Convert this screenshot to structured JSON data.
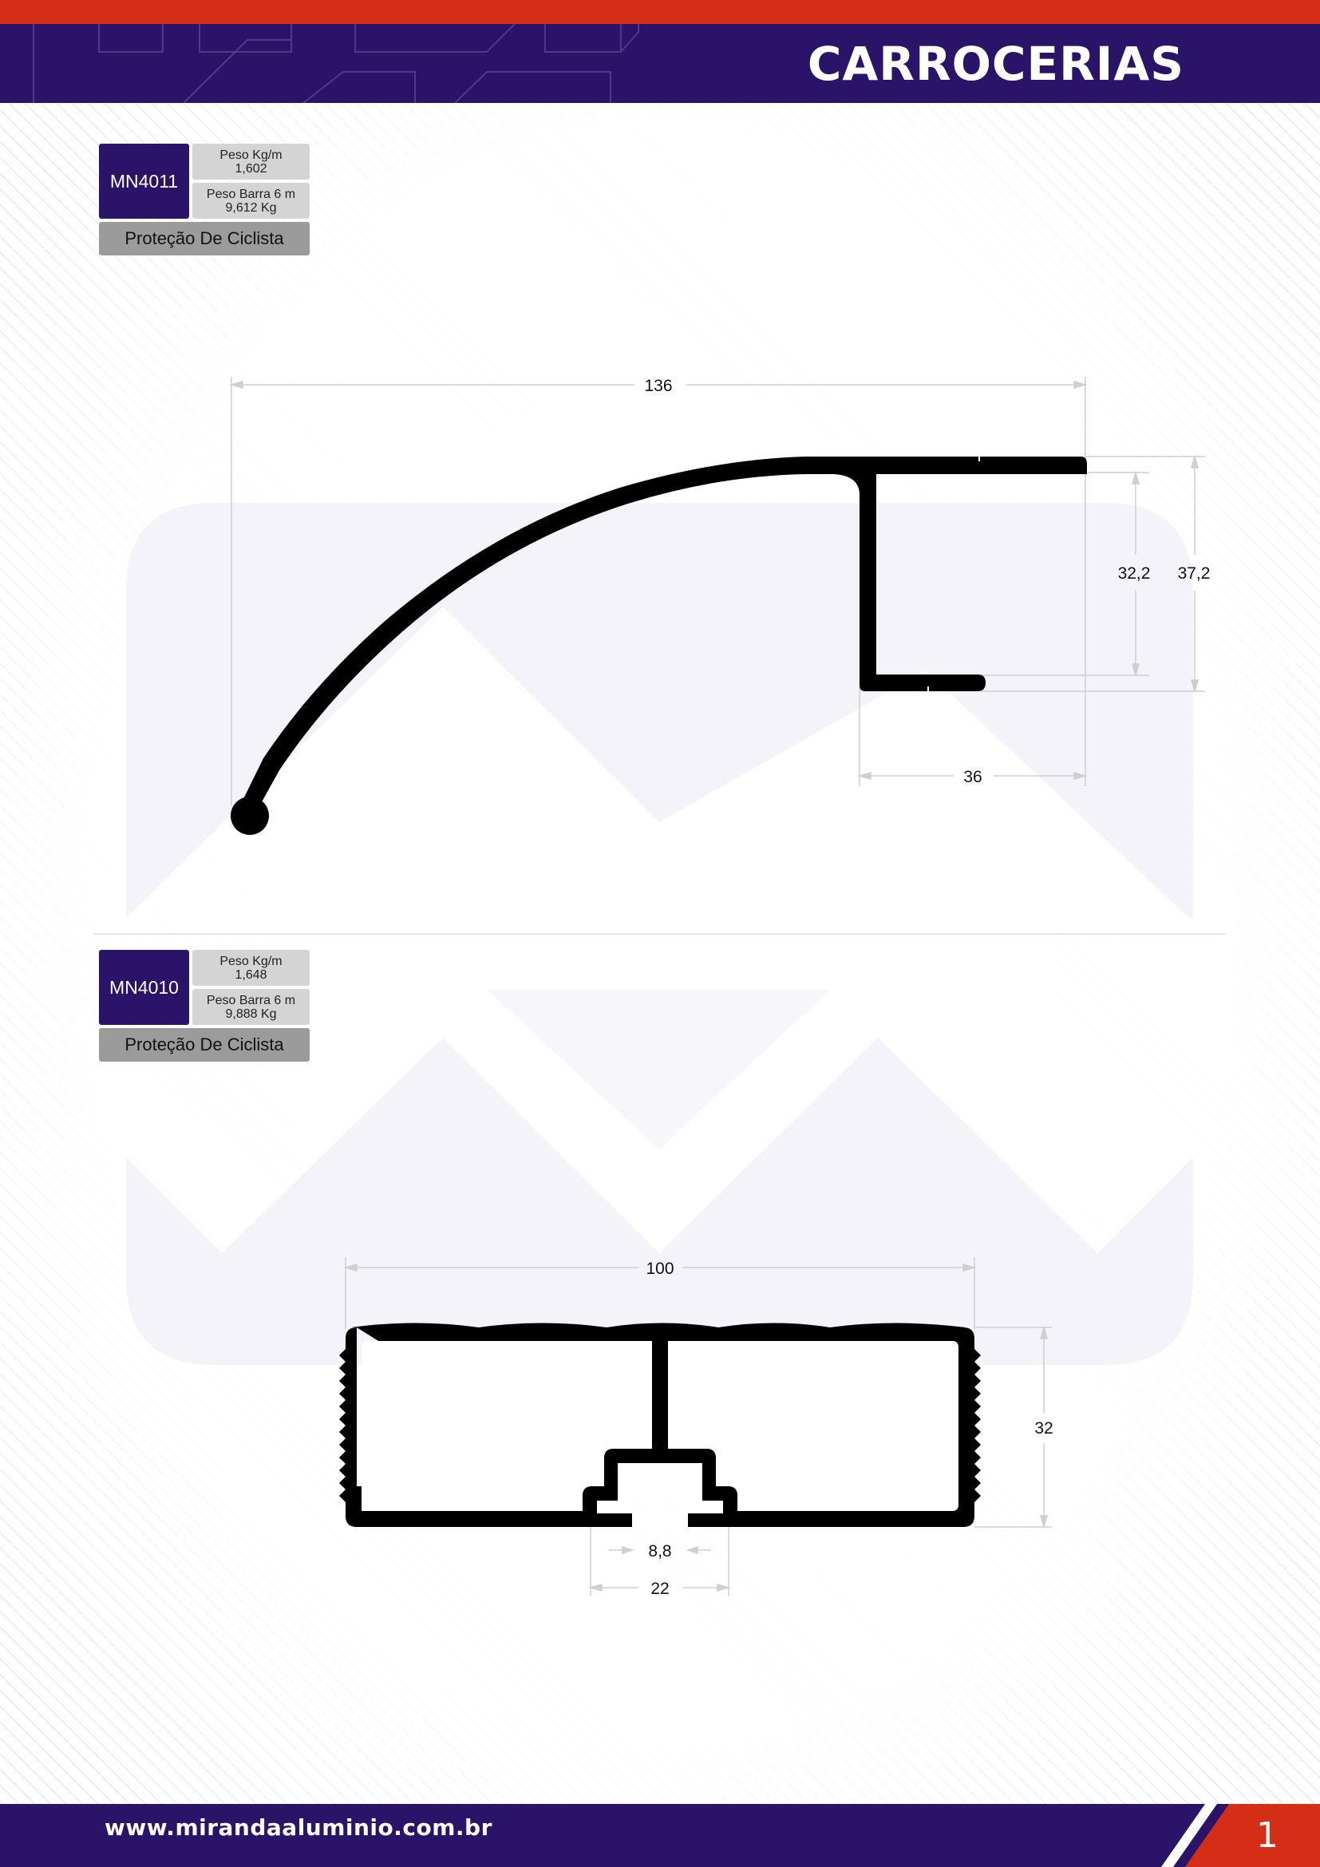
{
  "header": {
    "title": "CARROCERIAS",
    "accent_color": "#d42e16",
    "brand_color": "#2a1469"
  },
  "profiles": [
    {
      "code": "MN4011",
      "weight_label": "Peso Kg/m",
      "weight_value": "1,602",
      "bar_label": "Peso Barra 6 m",
      "bar_value": "9,612 Kg",
      "name": "Proteção De Ciclista",
      "dimensions": {
        "width": "136",
        "inner_height": "32,2",
        "outer_height": "37,2",
        "flange_width": "36"
      }
    },
    {
      "code": "MN4010",
      "weight_label": "Peso Kg/m",
      "weight_value": "1,648",
      "bar_label": "Peso Barra 6 m",
      "bar_value": "9,888 Kg",
      "name": "Proteção De Ciclista",
      "dimensions": {
        "width": "100",
        "height": "32",
        "slot_opening": "8,8",
        "slot_width": "22"
      }
    }
  ],
  "footer": {
    "url": "www.mirandaaluminio.com.br",
    "page_number": "1"
  }
}
